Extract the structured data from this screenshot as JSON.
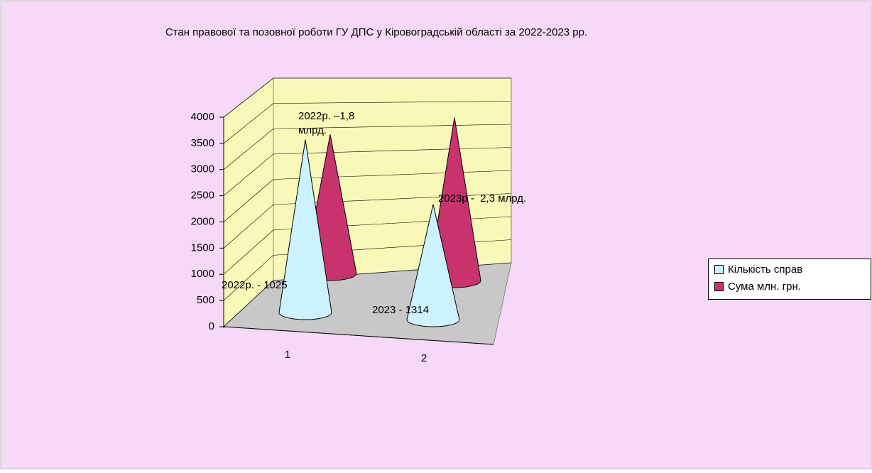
{
  "chart_data": {
    "type": "bar",
    "title": "Стан правової та позовної роботи ГУ ДПС у Кіровоградській області за 2022-2023 рр.",
    "categories": [
      "1",
      "2"
    ],
    "series": [
      {
        "name": "Кількість справ",
        "color": "#ccf2ff",
        "values": [
          3300,
          2200
        ]
      },
      {
        "name": "Сума млн. грн.",
        "color": "#c8336e",
        "values": [
          2900,
          3400
        ]
      }
    ],
    "ylim": [
      0,
      4000
    ],
    "yticks": [
      0,
      500,
      1000,
      1500,
      2000,
      2500,
      3000,
      3500,
      4000
    ],
    "grid": true,
    "legend": "right",
    "annotations": [
      "2022р. –1,8 млрд.",
      "2023р -  2,3 млрд.",
      "2022р. - 1025",
      "2023 - 1314"
    ]
  }
}
